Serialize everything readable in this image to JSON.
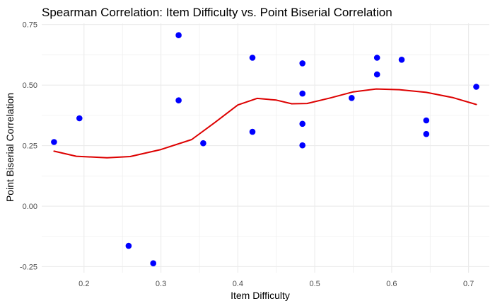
{
  "chart_data": {
    "type": "scatter",
    "title": "Spearman Correlation: Item Difficulty vs. Point Biserial Correlation",
    "xlabel": "Item Difficulty",
    "ylabel": "Point Biserial Correlation",
    "xlim": [
      0.145,
      0.727
    ],
    "ylim": [
      -0.275,
      0.755
    ],
    "x_ticks": [
      0.2,
      0.3,
      0.4,
      0.5,
      0.6,
      0.7
    ],
    "x_tick_labels": [
      "0.2",
      "0.3",
      "0.4",
      "0.5",
      "0.6",
      "0.7"
    ],
    "y_ticks": [
      -0.25,
      0.0,
      0.25,
      0.5,
      0.75
    ],
    "y_tick_labels": [
      "-0.25",
      "0.00",
      "0.25",
      "0.50",
      "0.75"
    ],
    "grid": true,
    "colors": {
      "points": "#0000ff",
      "smooth": "#dd0000",
      "grid": "#ebebeb"
    },
    "points": [
      {
        "x": 0.161,
        "y": 0.265
      },
      {
        "x": 0.194,
        "y": 0.363
      },
      {
        "x": 0.258,
        "y": -0.164
      },
      {
        "x": 0.29,
        "y": -0.236
      },
      {
        "x": 0.323,
        "y": 0.706
      },
      {
        "x": 0.323,
        "y": 0.437
      },
      {
        "x": 0.355,
        "y": 0.26
      },
      {
        "x": 0.419,
        "y": 0.613
      },
      {
        "x": 0.419,
        "y": 0.307
      },
      {
        "x": 0.484,
        "y": 0.59
      },
      {
        "x": 0.484,
        "y": 0.465
      },
      {
        "x": 0.484,
        "y": 0.34
      },
      {
        "x": 0.484,
        "y": 0.251
      },
      {
        "x": 0.548,
        "y": 0.447
      },
      {
        "x": 0.581,
        "y": 0.613
      },
      {
        "x": 0.581,
        "y": 0.544
      },
      {
        "x": 0.613,
        "y": 0.605
      },
      {
        "x": 0.645,
        "y": 0.354
      },
      {
        "x": 0.645,
        "y": 0.298
      },
      {
        "x": 0.71,
        "y": 0.493
      }
    ],
    "smooth_line": [
      {
        "x": 0.161,
        "y": 0.227
      },
      {
        "x": 0.19,
        "y": 0.206
      },
      {
        "x": 0.23,
        "y": 0.2
      },
      {
        "x": 0.26,
        "y": 0.205
      },
      {
        "x": 0.3,
        "y": 0.234
      },
      {
        "x": 0.34,
        "y": 0.275
      },
      {
        "x": 0.37,
        "y": 0.345
      },
      {
        "x": 0.4,
        "y": 0.418
      },
      {
        "x": 0.425,
        "y": 0.445
      },
      {
        "x": 0.45,
        "y": 0.438
      },
      {
        "x": 0.47,
        "y": 0.423
      },
      {
        "x": 0.49,
        "y": 0.424
      },
      {
        "x": 0.52,
        "y": 0.447
      },
      {
        "x": 0.55,
        "y": 0.472
      },
      {
        "x": 0.58,
        "y": 0.484
      },
      {
        "x": 0.61,
        "y": 0.481
      },
      {
        "x": 0.645,
        "y": 0.47
      },
      {
        "x": 0.68,
        "y": 0.448
      },
      {
        "x": 0.71,
        "y": 0.42
      }
    ]
  }
}
